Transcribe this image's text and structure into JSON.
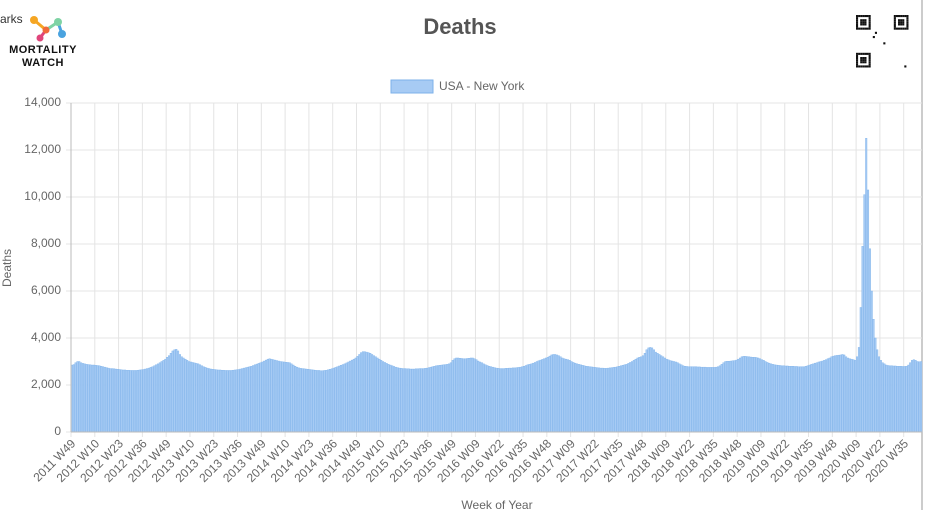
{
  "cropped_text": "arks",
  "logo": {
    "line1": "MORTALITY",
    "line2": "WATCH"
  },
  "chart_data": {
    "type": "bar",
    "title": "Deaths",
    "y_label": "Deaths",
    "x_label": "Week of Year",
    "ylim": [
      0,
      14000
    ],
    "yticks": [
      0,
      {
        "value": 2000,
        "label": "2,000"
      },
      {
        "value": 4000,
        "label": "4,000"
      },
      {
        "value": 6000,
        "label": "6,000"
      },
      {
        "value": 8000,
        "label": "8,000"
      },
      {
        "value": 10000,
        "label": "10,000"
      },
      {
        "value": 12000,
        "label": "12,000"
      },
      {
        "value": 14000,
        "label": "14,000"
      }
    ],
    "grid": true,
    "categories": [
      "2011 W49",
      null,
      null,
      null,
      null,
      null,
      null,
      null,
      null,
      null,
      null,
      null,
      null,
      "2012 W10",
      null,
      null,
      null,
      null,
      null,
      null,
      null,
      null,
      null,
      null,
      null,
      null,
      "2012 W23",
      null,
      null,
      null,
      null,
      null,
      null,
      null,
      null,
      null,
      null,
      null,
      null,
      "2012 W36",
      null,
      null,
      null,
      null,
      null,
      null,
      null,
      null,
      null,
      null,
      null,
      null,
      "2012 W49",
      null,
      null,
      null,
      null,
      null,
      null,
      null,
      null,
      null,
      null,
      null,
      null,
      "2013 W10",
      null,
      null,
      null,
      null,
      null,
      null,
      null,
      null,
      null,
      null,
      null,
      null,
      "2013 W23",
      null,
      null,
      null,
      null,
      null,
      null,
      null,
      null,
      null,
      null,
      null,
      null,
      "2013 W36",
      null,
      null,
      null,
      null,
      null,
      null,
      null,
      null,
      null,
      null,
      null,
      null,
      "2013 W49",
      null,
      null,
      null,
      null,
      null,
      null,
      null,
      null,
      null,
      null,
      null,
      null,
      "2014 W10",
      null,
      null,
      null,
      null,
      null,
      null,
      null,
      null,
      null,
      null,
      null,
      null,
      "2014 W23",
      null,
      null,
      null,
      null,
      null,
      null,
      null,
      null,
      null,
      null,
      null,
      null,
      "2014 W36",
      null,
      null,
      null,
      null,
      null,
      null,
      null,
      null,
      null,
      null,
      null,
      null,
      "2014 W49",
      null,
      null,
      null,
      null,
      null,
      null,
      null,
      null,
      null,
      null,
      null,
      null,
      "2015 W10",
      null,
      null,
      null,
      null,
      null,
      null,
      null,
      null,
      null,
      null,
      null,
      null,
      "2015 W23",
      null,
      null,
      null,
      null,
      null,
      null,
      null,
      null,
      null,
      null,
      null,
      null,
      "2015 W36",
      null,
      null,
      null,
      null,
      null,
      null,
      null,
      null,
      null,
      null,
      null,
      null,
      "2015 W49",
      null,
      null,
      null,
      null,
      null,
      null,
      null,
      null,
      null,
      null,
      null,
      null,
      "2016 W09",
      null,
      null,
      null,
      null,
      null,
      null,
      null,
      null,
      null,
      null,
      null,
      null,
      "2016 W22",
      null,
      null,
      null,
      null,
      null,
      null,
      null,
      null,
      null,
      null,
      null,
      null,
      "2016 W35",
      null,
      null,
      null,
      null,
      null,
      null,
      null,
      null,
      null,
      null,
      null,
      null,
      "2016 W48",
      null,
      null,
      null,
      null,
      null,
      null,
      null,
      null,
      null,
      null,
      null,
      null,
      "2017 W09",
      null,
      null,
      null,
      null,
      null,
      null,
      null,
      null,
      null,
      null,
      null,
      null,
      "2017 W22",
      null,
      null,
      null,
      null,
      null,
      null,
      null,
      null,
      null,
      null,
      null,
      null,
      "2017 W35",
      null,
      null,
      null,
      null,
      null,
      null,
      null,
      null,
      null,
      null,
      null,
      null,
      "2017 W48",
      null,
      null,
      null,
      null,
      null,
      null,
      null,
      null,
      null,
      null,
      null,
      null,
      "2018 W09",
      null,
      null,
      null,
      null,
      null,
      null,
      null,
      null,
      null,
      null,
      null,
      null,
      "2018 W22",
      null,
      null,
      null,
      null,
      null,
      null,
      null,
      null,
      null,
      null,
      null,
      null,
      "2018 W35",
      null,
      null,
      null,
      null,
      null,
      null,
      null,
      null,
      null,
      null,
      null,
      null,
      "2018 W48",
      null,
      null,
      null,
      null,
      null,
      null,
      null,
      null,
      null,
      null,
      null,
      null,
      "2019 W09",
      null,
      null,
      null,
      null,
      null,
      null,
      null,
      null,
      null,
      null,
      null,
      null,
      "2019 W22",
      null,
      null,
      null,
      null,
      null,
      null,
      null,
      null,
      null,
      null,
      null,
      null,
      "2019 W35",
      null,
      null,
      null,
      null,
      null,
      null,
      null,
      null,
      null,
      null,
      null,
      null,
      "2019 W48",
      null,
      null,
      null,
      null,
      null,
      null,
      null,
      null,
      null,
      null,
      null,
      null,
      "2020 W09",
      null,
      null,
      null,
      null,
      null,
      null,
      null,
      null,
      null,
      null,
      null,
      null,
      "2020 W22",
      null,
      null,
      null,
      null,
      null,
      null,
      null,
      null,
      null,
      null,
      null,
      null,
      "2020 W35",
      null,
      null,
      null,
      null,
      null,
      null,
      null,
      null,
      null
    ],
    "series": [
      {
        "name": "USA - New York",
        "color": "#a7cbf4",
        "border": "#7eb2ea",
        "values": [
          2850,
          2870,
          2950,
          3000,
          3000,
          2950,
          2920,
          2900,
          2880,
          2870,
          2860,
          2850,
          2850,
          2840,
          2830,
          2820,
          2800,
          2780,
          2760,
          2740,
          2720,
          2700,
          2700,
          2690,
          2680,
          2670,
          2660,
          2650,
          2640,
          2640,
          2630,
          2630,
          2620,
          2620,
          2620,
          2620,
          2630,
          2640,
          2650,
          2660,
          2680,
          2700,
          2720,
          2750,
          2780,
          2820,
          2860,
          2900,
          2950,
          3000,
          3050,
          3100,
          3180,
          3250,
          3350,
          3450,
          3500,
          3520,
          3450,
          3300,
          3200,
          3150,
          3100,
          3050,
          3000,
          2980,
          2960,
          2940,
          2920,
          2900,
          2860,
          2820,
          2780,
          2750,
          2720,
          2700,
          2680,
          2670,
          2660,
          2650,
          2640,
          2640,
          2630,
          2630,
          2620,
          2620,
          2620,
          2620,
          2630,
          2640,
          2650,
          2660,
          2680,
          2700,
          2720,
          2740,
          2760,
          2780,
          2800,
          2830,
          2860,
          2890,
          2920,
          2950,
          2980,
          3020,
          3060,
          3100,
          3120,
          3100,
          3080,
          3060,
          3040,
          3020,
          3000,
          2990,
          2980,
          2970,
          2960,
          2950,
          2900,
          2850,
          2800,
          2760,
          2730,
          2710,
          2700,
          2690,
          2680,
          2670,
          2660,
          2650,
          2640,
          2630,
          2620,
          2620,
          2610,
          2610,
          2620,
          2630,
          2650,
          2670,
          2690,
          2720,
          2750,
          2780,
          2810,
          2840,
          2870,
          2900,
          2940,
          2980,
          3020,
          3060,
          3100,
          3150,
          3220,
          3300,
          3380,
          3420,
          3420,
          3400,
          3380,
          3350,
          3300,
          3250,
          3200,
          3150,
          3100,
          3050,
          3000,
          2960,
          2920,
          2880,
          2850,
          2820,
          2790,
          2760,
          2740,
          2720,
          2710,
          2700,
          2700,
          2690,
          2690,
          2680,
          2680,
          2680,
          2690,
          2690,
          2700,
          2700,
          2700,
          2710,
          2720,
          2740,
          2760,
          2780,
          2800,
          2820,
          2830,
          2840,
          2850,
          2860,
          2870,
          2880,
          2900,
          2950,
          3050,
          3120,
          3150,
          3150,
          3140,
          3130,
          3120,
          3120,
          3130,
          3140,
          3150,
          3150,
          3120,
          3080,
          3020,
          2980,
          2950,
          2900,
          2860,
          2830,
          2800,
          2780,
          2760,
          2740,
          2720,
          2710,
          2700,
          2700,
          2700,
          2710,
          2710,
          2720,
          2720,
          2730,
          2730,
          2740,
          2750,
          2760,
          2780,
          2800,
          2830,
          2860,
          2880,
          2900,
          2930,
          2960,
          3000,
          3030,
          3060,
          3090,
          3120,
          3150,
          3180,
          3230,
          3280,
          3300,
          3300,
          3280,
          3250,
          3200,
          3150,
          3120,
          3100,
          3080,
          3050,
          3000,
          2960,
          2930,
          2900,
          2880,
          2860,
          2840,
          2820,
          2800,
          2790,
          2780,
          2770,
          2760,
          2750,
          2740,
          2730,
          2720,
          2720,
          2710,
          2710,
          2720,
          2730,
          2740,
          2750,
          2760,
          2780,
          2800,
          2820,
          2840,
          2860,
          2880,
          2920,
          2960,
          3000,
          3050,
          3100,
          3150,
          3180,
          3200,
          3250,
          3350,
          3500,
          3580,
          3600,
          3580,
          3500,
          3400,
          3350,
          3300,
          3250,
          3200,
          3150,
          3100,
          3070,
          3040,
          3020,
          3000,
          2980,
          2950,
          2900,
          2860,
          2820,
          2800,
          2790,
          2780,
          2780,
          2780,
          2780,
          2780,
          2770,
          2770,
          2760,
          2760,
          2760,
          2750,
          2750,
          2750,
          2750,
          2750,
          2760,
          2780,
          2820,
          2880,
          2950,
          3000,
          3010,
          3010,
          3020,
          3030,
          3040,
          3060,
          3100,
          3150,
          3200,
          3220,
          3220,
          3210,
          3200,
          3190,
          3180,
          3180,
          3170,
          3150,
          3120,
          3080,
          3050,
          3000,
          2960,
          2930,
          2900,
          2880,
          2860,
          2850,
          2840,
          2830,
          2820,
          2820,
          2810,
          2810,
          2800,
          2800,
          2800,
          2790,
          2790,
          2780,
          2780,
          2780,
          2780,
          2800,
          2820,
          2850,
          2880,
          2900,
          2930,
          2950,
          2980,
          3000,
          3020,
          3050,
          3080,
          3120,
          3150,
          3200,
          3230,
          3250,
          3260,
          3270,
          3280,
          3300,
          3280,
          3200,
          3150,
          3120,
          3100,
          3080,
          3050,
          3200,
          3600,
          5300,
          7900,
          10100,
          12500,
          10300,
          7800,
          6000,
          4800,
          4000,
          3500,
          3200,
          3050,
          2950,
          2900,
          2850,
          2830,
          2820,
          2820,
          2810,
          2810,
          2800,
          2800,
          2800,
          2790,
          2790,
          2800,
          2850,
          2950,
          3050,
          3080,
          3050,
          3000,
          2990,
          3000
        ]
      }
    ]
  }
}
